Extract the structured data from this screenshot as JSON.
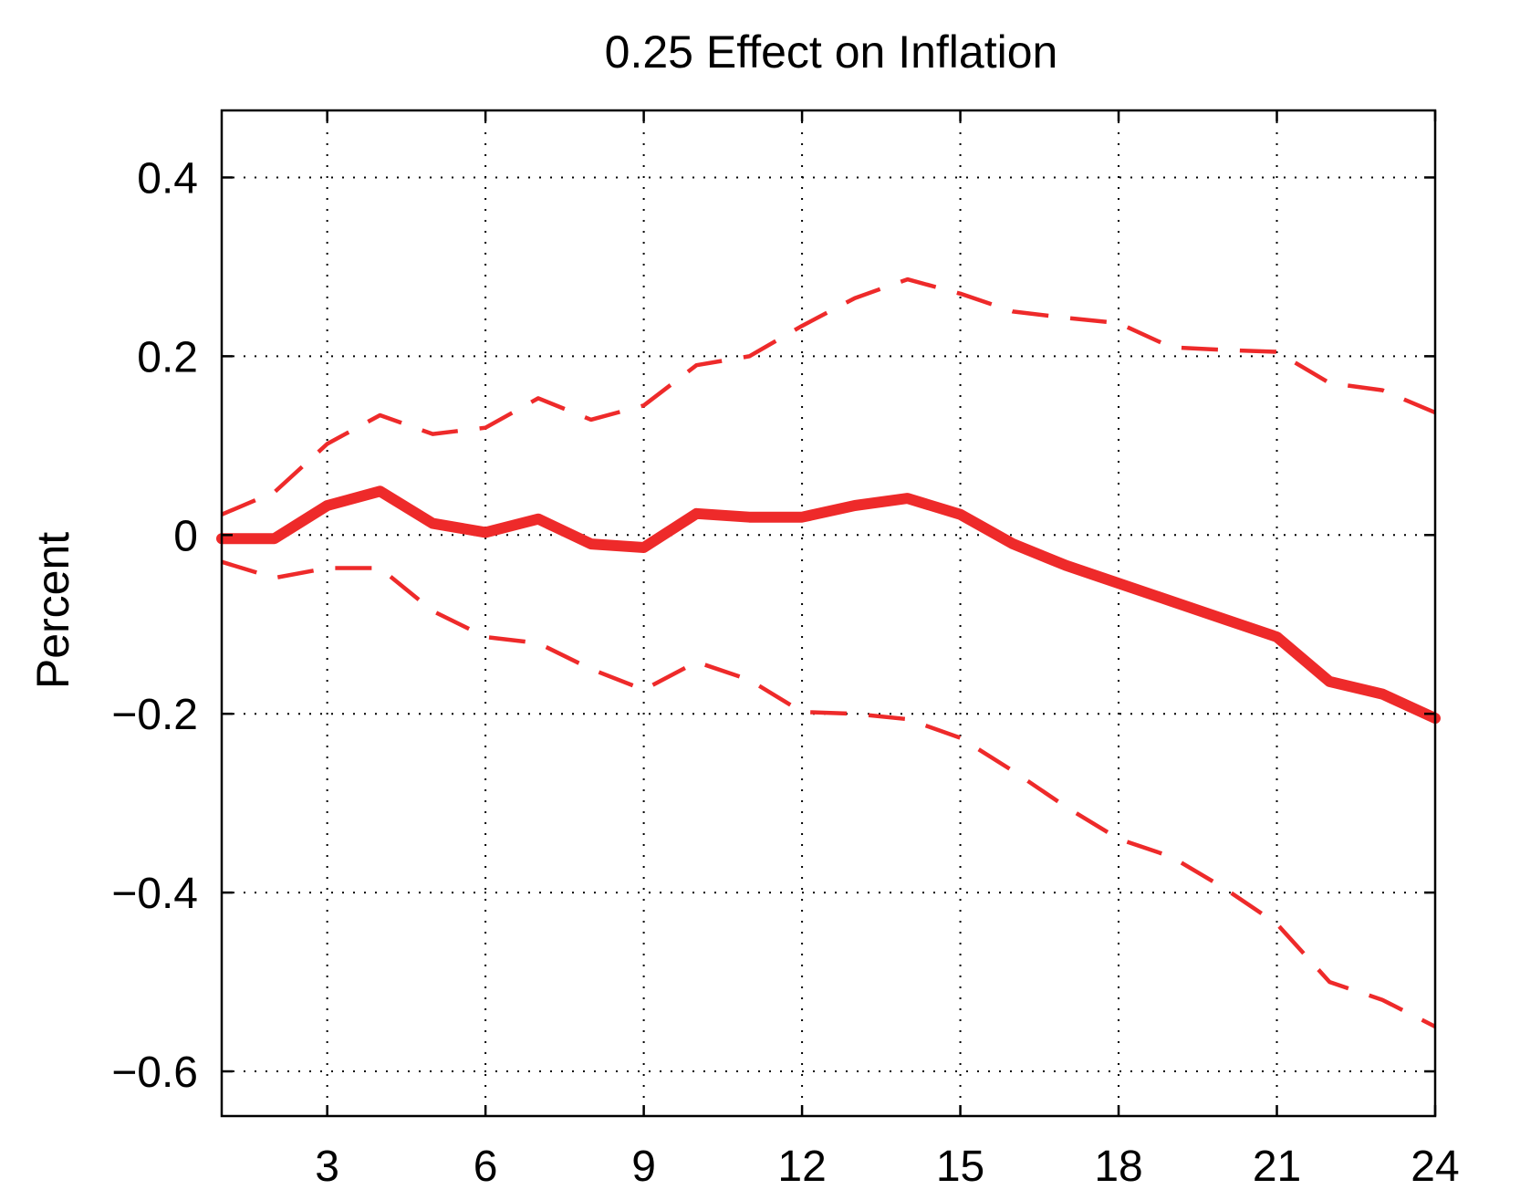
{
  "chart_data": {
    "type": "line",
    "title": "0.25 Effect on Inflation",
    "xlabel": "",
    "ylabel": "Percent",
    "xlim": [
      1,
      24
    ],
    "ylim": [
      -0.65,
      0.475
    ],
    "xticks": [
      3,
      6,
      9,
      12,
      15,
      18,
      21,
      24
    ],
    "yticks": [
      -0.6,
      -0.4,
      -0.2,
      0,
      0.2,
      0.4
    ],
    "ytick_labels": [
      "−0.6",
      "−0.4",
      "−0.2",
      "0",
      "0.2",
      "0.4"
    ],
    "grid": true,
    "x": [
      1,
      2,
      3,
      4,
      5,
      6,
      7,
      8,
      9,
      10,
      11,
      12,
      13,
      14,
      15,
      16,
      17,
      18,
      19,
      20,
      21,
      22,
      23,
      24
    ],
    "series": [
      {
        "style": "solid",
        "color": "#ee2a2a",
        "values": [
          -0.004,
          -0.004,
          0.033,
          0.049,
          0.013,
          0.003,
          0.018,
          -0.01,
          -0.014,
          0.024,
          0.02,
          0.02,
          0.033,
          0.041,
          0.023,
          -0.01,
          -0.034,
          -0.054,
          -0.074,
          -0.094,
          -0.114,
          -0.164,
          -0.178,
          -0.205
        ]
      },
      {
        "style": "dashed",
        "color": "#ee2a2a",
        "values": [
          0.023,
          0.048,
          0.102,
          0.134,
          0.113,
          0.12,
          0.153,
          0.129,
          0.145,
          0.19,
          0.2,
          0.234,
          0.265,
          0.286,
          0.27,
          0.25,
          0.243,
          0.237,
          0.21,
          0.207,
          0.205,
          0.17,
          0.162,
          0.137
        ]
      },
      {
        "style": "dashed",
        "color": "#ee2a2a",
        "values": [
          -0.03,
          -0.048,
          -0.037,
          -0.037,
          -0.085,
          -0.114,
          -0.121,
          -0.15,
          -0.173,
          -0.142,
          -0.162,
          -0.198,
          -0.2,
          -0.206,
          -0.227,
          -0.264,
          -0.304,
          -0.34,
          -0.36,
          -0.395,
          -0.435,
          -0.5,
          -0.52,
          -0.55
        ]
      }
    ]
  }
}
